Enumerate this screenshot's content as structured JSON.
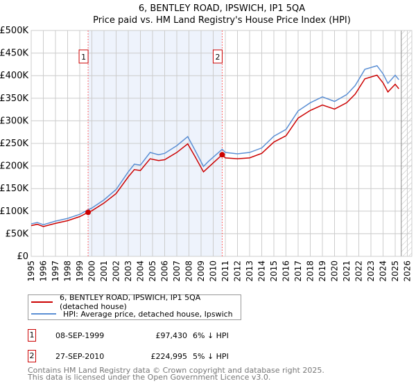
{
  "chart_data": {
    "type": "line",
    "title": "6, BENTLEY ROAD, IPSWICH, IP1 5QA",
    "subtitle": "Price paid vs. HM Land Registry's House Price Index (HPI)",
    "xlabel": "",
    "ylabel": "",
    "xlim": [
      1995,
      2026
    ],
    "ylim": [
      0,
      500000
    ],
    "yticks": [
      "£0",
      "£50K",
      "£100K",
      "£150K",
      "£200K",
      "£250K",
      "£300K",
      "£350K",
      "£400K",
      "£450K",
      "£500K"
    ],
    "xticks": [
      "1995",
      "1996",
      "1997",
      "1998",
      "1999",
      "2000",
      "2001",
      "2002",
      "2003",
      "2004",
      "2005",
      "2006",
      "2007",
      "2008",
      "2009",
      "2010",
      "2011",
      "2012",
      "2013",
      "2014",
      "2015",
      "2016",
      "2017",
      "2018",
      "2019",
      "2020",
      "2021",
      "2022",
      "2023",
      "2024",
      "2025",
      "2026"
    ],
    "grid": true,
    "series": [
      {
        "name": "6, BENTLEY ROAD, IPSWICH, IP1 5QA (detached house)",
        "color": "#cc0000",
        "x": [
          1995,
          1995.5,
          1996,
          1997,
          1998,
          1999,
          1999.69,
          2000,
          2001,
          2002,
          2003,
          2003.5,
          2004,
          2004.8,
          2005.5,
          2006,
          2007,
          2007.9,
          2008.5,
          2009.2,
          2009.6,
          2010.74,
          2011,
          2012,
          2013,
          2014,
          2015,
          2016,
          2017,
          2018,
          2019,
          2020,
          2021,
          2021.7,
          2022.5,
          2023.5,
          2024,
          2024.4,
          2025,
          2025.3
        ],
        "y": [
          68000,
          71000,
          66000,
          73000,
          79000,
          88000,
          97430,
          101000,
          118000,
          139000,
          176000,
          192000,
          190000,
          216000,
          212000,
          214000,
          230000,
          249000,
          221000,
          187000,
          197000,
          224995,
          218000,
          216000,
          218000,
          228000,
          253000,
          267000,
          306000,
          323000,
          335000,
          326000,
          340000,
          359000,
          393000,
          401000,
          384000,
          364000,
          381000,
          371000
        ]
      },
      {
        "name": "HPI: Average price, detached house, Ipswich",
        "color": "#5b8fd4",
        "x": [
          1995,
          1995.5,
          1996,
          1997,
          1998,
          1999,
          1999.69,
          2000,
          2001,
          2002,
          2003,
          2003.5,
          2004,
          2004.8,
          2005.5,
          2006,
          2007,
          2007.9,
          2008.5,
          2009.2,
          2009.6,
          2010.74,
          2011,
          2012,
          2013,
          2014,
          2015,
          2016,
          2017,
          2018,
          2019,
          2020,
          2021,
          2021.7,
          2022.5,
          2023.5,
          2024,
          2024.4,
          2025,
          2025.3
        ],
        "y": [
          72000,
          75000,
          70000,
          78000,
          84000,
          93000,
          103000,
          107000,
          125000,
          148000,
          187000,
          204000,
          202000,
          230000,
          225000,
          228000,
          245000,
          265000,
          235000,
          199000,
          210000,
          237000,
          230000,
          227000,
          230000,
          240000,
          266000,
          281000,
          322000,
          340000,
          353000,
          343000,
          358000,
          378000,
          414000,
          422000,
          404000,
          383000,
          401000,
          391000
        ]
      }
    ],
    "annotations": [
      {
        "label": "1",
        "x": 1999.69,
        "y": 97430
      },
      {
        "label": "2",
        "x": 2010.74,
        "y": 224995
      }
    ],
    "shaded_range": [
      1999.69,
      2010.74
    ],
    "hatched_from": 2025.5,
    "legend_position": "below"
  },
  "legend": {
    "property": "6, BENTLEY ROAD, IPSWICH, IP1 5QA (detached house)",
    "hpi": "HPI: Average price, detached house, Ipswich"
  },
  "transactions": [
    {
      "num": "1",
      "date": "08-SEP-1999",
      "price": "£97,430",
      "hpi": "6% ↓ HPI"
    },
    {
      "num": "2",
      "date": "27-SEP-2010",
      "price": "£224,995",
      "hpi": "5% ↓ HPI"
    }
  ],
  "footer": {
    "line1": "Contains HM Land Registry data © Crown copyright and database right 2025.",
    "line2": "This data is licensed under the Open Government Licence v3.0."
  }
}
